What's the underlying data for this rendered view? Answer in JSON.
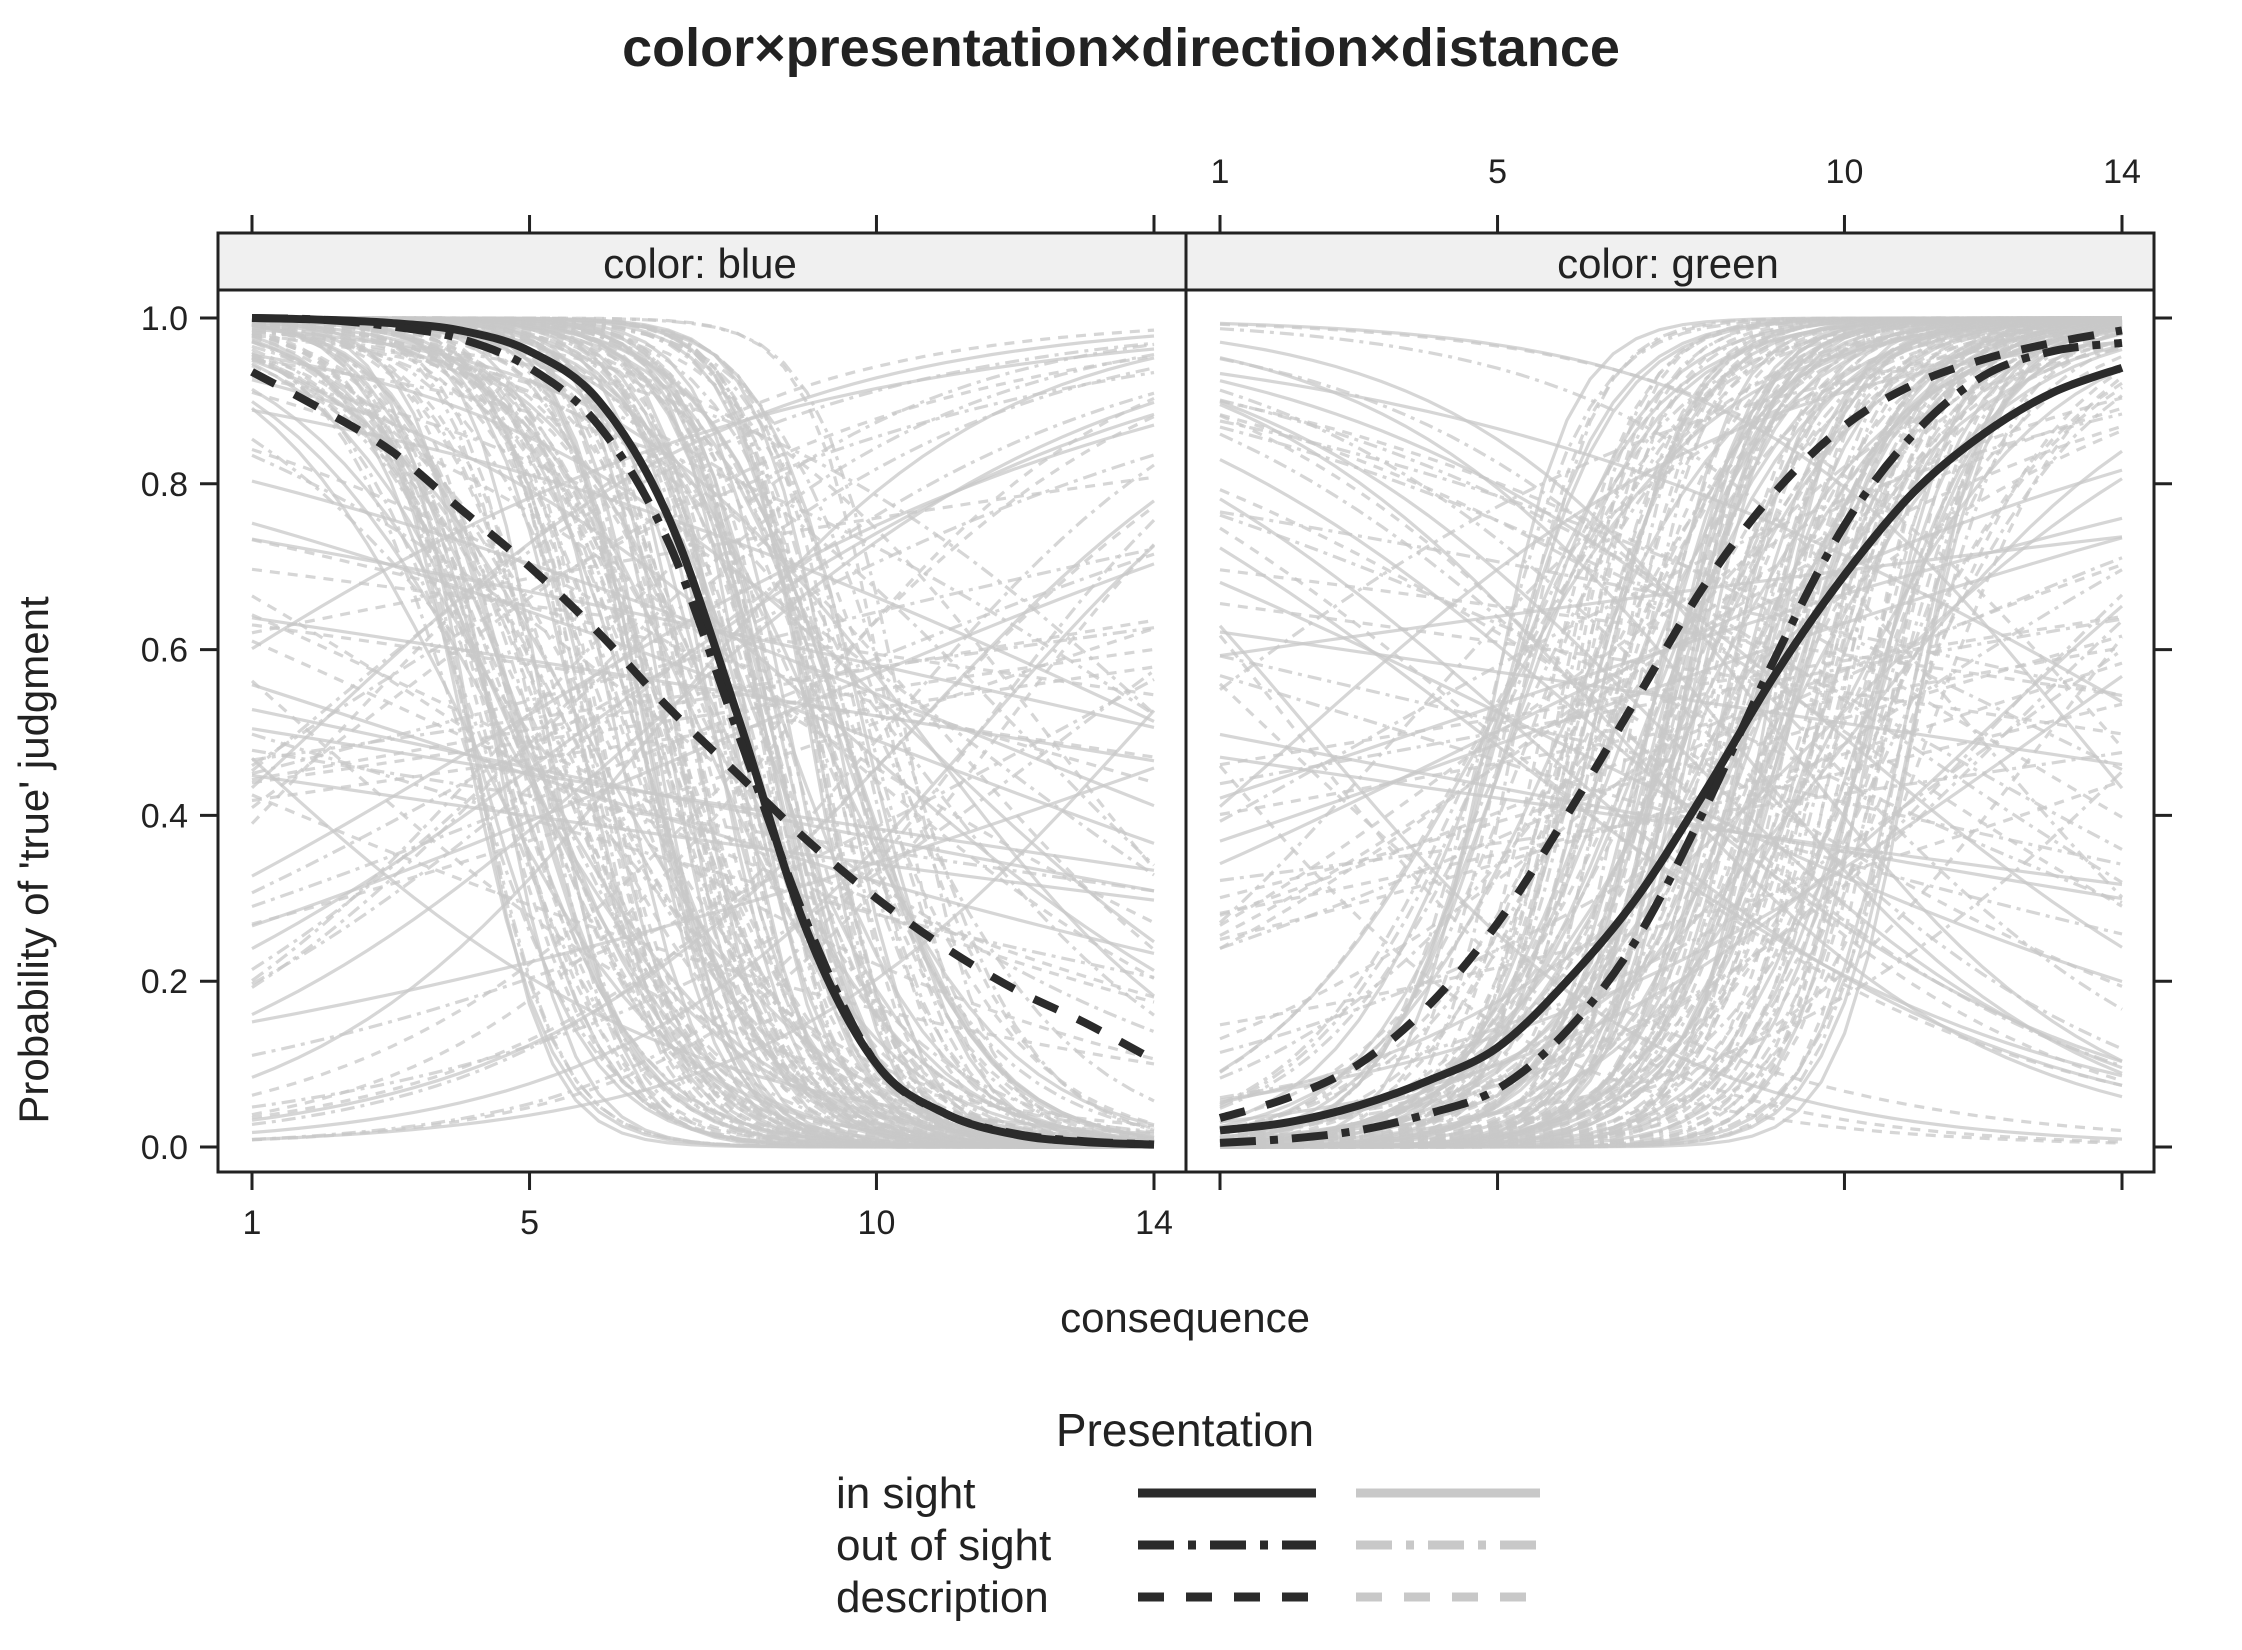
{
  "chart_data": {
    "type": "line",
    "title": "color×presentation×direction×distance",
    "xlabel": "consequence",
    "ylabel": "Probability of 'true' judgment",
    "xlim": [
      1,
      14
    ],
    "ylim": [
      0,
      1
    ],
    "x_ticks": [
      1,
      5,
      10,
      14
    ],
    "y_ticks": [
      "0.0",
      "0.2",
      "0.4",
      "0.6",
      "0.8",
      "1.0"
    ],
    "grid": false,
    "panels": [
      {
        "strip": "color: blue",
        "series": [
          {
            "name": "in sight",
            "style": "solid",
            "x": [
              1,
              2,
              3,
              4,
              5,
              6,
              7,
              8,
              9,
              10,
              11,
              12,
              13,
              14
            ],
            "y": [
              1.0,
              0.998,
              0.994,
              0.985,
              0.96,
              0.9,
              0.76,
              0.52,
              0.26,
              0.1,
              0.04,
              0.015,
              0.006,
              0.003
            ]
          },
          {
            "name": "out of sight",
            "style": "dashdot",
            "x": [
              1,
              2,
              3,
              4,
              5,
              6,
              7,
              8,
              9,
              10,
              11,
              12,
              13,
              14
            ],
            "y": [
              1.0,
              0.998,
              0.99,
              0.975,
              0.94,
              0.87,
              0.73,
              0.5,
              0.27,
              0.1,
              0.04,
              0.016,
              0.007,
              0.003
            ]
          },
          {
            "name": "description",
            "style": "dashed",
            "x": [
              1,
              2,
              3,
              4,
              5,
              6,
              7,
              8,
              9,
              10,
              11,
              12,
              13,
              14
            ],
            "y": [
              0.935,
              0.89,
              0.84,
              0.77,
              0.7,
              0.62,
              0.53,
              0.45,
              0.37,
              0.3,
              0.24,
              0.19,
              0.15,
              0.105
            ]
          }
        ]
      },
      {
        "strip": "color: green",
        "series": [
          {
            "name": "in sight",
            "style": "solid",
            "x": [
              1,
              2,
              3,
              4,
              5,
              6,
              7,
              8,
              9,
              10,
              11,
              12,
              13,
              14
            ],
            "y": [
              0.02,
              0.03,
              0.05,
              0.08,
              0.12,
              0.2,
              0.3,
              0.43,
              0.57,
              0.69,
              0.79,
              0.86,
              0.91,
              0.94
            ]
          },
          {
            "name": "out of sight",
            "style": "dashdot",
            "x": [
              1,
              2,
              3,
              4,
              5,
              6,
              7,
              8,
              9,
              10,
              11,
              12,
              13,
              14
            ],
            "y": [
              0.005,
              0.01,
              0.02,
              0.04,
              0.07,
              0.14,
              0.25,
              0.41,
              0.59,
              0.75,
              0.86,
              0.93,
              0.96,
              0.97
            ]
          },
          {
            "name": "description",
            "style": "dashed",
            "x": [
              1,
              2,
              3,
              4,
              5,
              6,
              7,
              8,
              9,
              10,
              11,
              12,
              13,
              14
            ],
            "y": [
              0.035,
              0.06,
              0.1,
              0.17,
              0.27,
              0.4,
              0.54,
              0.68,
              0.79,
              0.87,
              0.92,
              0.95,
              0.97,
              0.985
            ]
          }
        ]
      }
    ],
    "background_curves": {
      "color": "#d3d3d3",
      "description_note": "many individual light-grey curves behind the three bold curves in each panel"
    },
    "legend": {
      "title": "Presentation",
      "position": "bottom",
      "entries": [
        {
          "label": "in sight",
          "style": "solid"
        },
        {
          "label": "out of sight",
          "style": "dashdot"
        },
        {
          "label": "description",
          "style": "dashed"
        }
      ]
    },
    "colors": {
      "bold": "#2b2b2b",
      "light": "#c8c8c8",
      "strip": "#f0f0f0"
    }
  }
}
